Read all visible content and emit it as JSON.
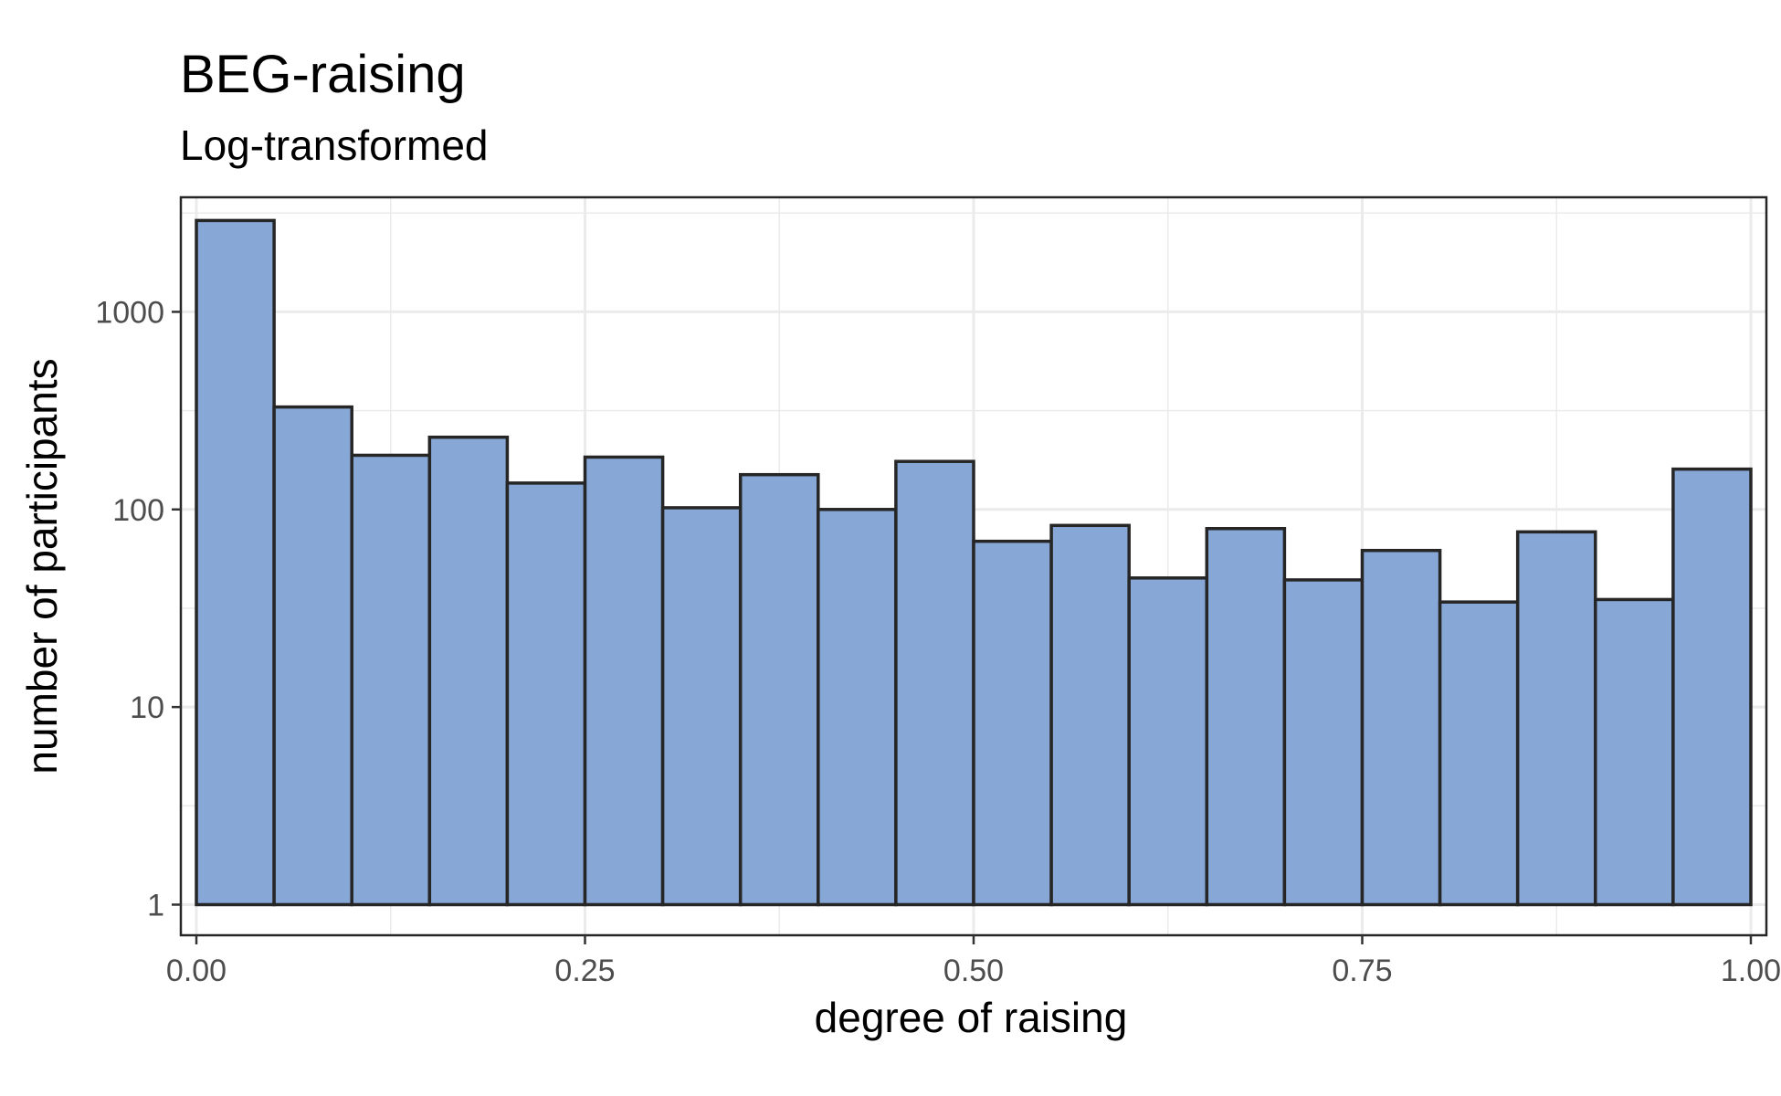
{
  "chart_data": {
    "type": "bar",
    "title": "BEG-raising",
    "subtitle": "Log-transformed",
    "xlabel": "degree of raising",
    "ylabel": "number of participants",
    "y_scale": "log10",
    "xlim": [
      -0.01,
      1.01
    ],
    "ylim": [
      0.7,
      3800
    ],
    "x_ticks": [
      0.0,
      0.25,
      0.5,
      0.75,
      1.0
    ],
    "x_tick_labels": [
      "0.00",
      "0.25",
      "0.50",
      "0.75",
      "1.00"
    ],
    "y_ticks": [
      1,
      10,
      100,
      1000
    ],
    "y_tick_labels": [
      "1",
      "10",
      "100",
      "1000"
    ],
    "bin_width": 0.05,
    "bins_start": [
      0.0,
      0.05,
      0.1,
      0.15,
      0.2,
      0.25,
      0.3,
      0.35,
      0.4,
      0.45,
      0.5,
      0.55,
      0.6,
      0.65,
      0.7,
      0.75,
      0.8,
      0.85,
      0.9,
      0.95
    ],
    "values": [
      2900,
      330,
      188,
      232,
      136,
      184,
      102,
      150,
      100,
      175,
      69,
      83,
      45,
      80,
      44,
      62,
      34,
      77,
      35,
      160
    ],
    "bar_fill": "#87a7d6",
    "bar_stroke": "#262626",
    "grid": true,
    "grid_color": "#ebebeb"
  }
}
